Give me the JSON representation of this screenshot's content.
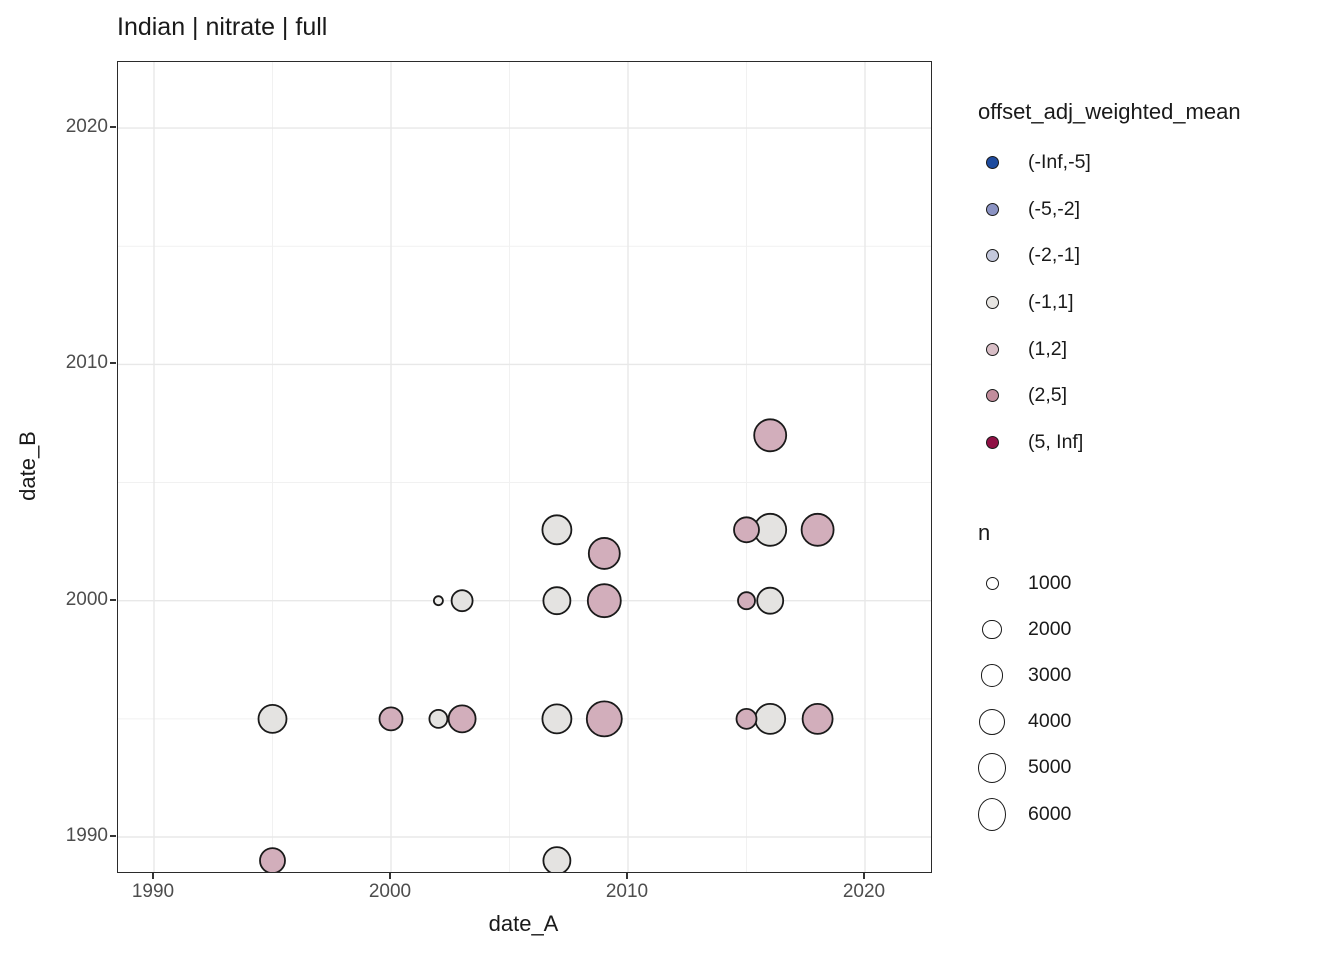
{
  "title": "Indian | nitrate | full",
  "x_axis": {
    "label": "date_A",
    "tick_labels": [
      "1990",
      "2000",
      "2010",
      "2020"
    ]
  },
  "y_axis": {
    "label": "date_B",
    "tick_labels": [
      "1990",
      "2000",
      "2010",
      "2020"
    ]
  },
  "legend_color": {
    "title": "offset_adj_weighted_mean",
    "items": [
      {
        "label": "(-Inf,-5]",
        "color": "#1e4b9e"
      },
      {
        "label": "(-5,-2]",
        "color": "#8b93c3"
      },
      {
        "label": "(-2,-1]",
        "color": "#c4c8dc"
      },
      {
        "label": "(-1,1]",
        "color": "#e7e5e2"
      },
      {
        "label": "(1,2]",
        "color": "#d8bec6"
      },
      {
        "label": "(2,5]",
        "color": "#c28d9c"
      },
      {
        "label": "(5, Inf]",
        "color": "#8f1044"
      }
    ]
  },
  "legend_size": {
    "title": "n",
    "items": [
      {
        "label": "1000",
        "d": 13
      },
      {
        "label": "2000",
        "d": 19.5
      },
      {
        "label": "3000",
        "d": 22.5
      },
      {
        "label": "4000",
        "d": 26
      },
      {
        "label": "5000",
        "d": 29.5
      },
      {
        "label": "6000",
        "d": 33
      }
    ]
  },
  "chart_data": {
    "type": "scatter",
    "title": "Indian | nitrate | full",
    "xlabel": "date_A",
    "ylabel": "date_B",
    "x_domain": [
      1988.5,
      2022.5
    ],
    "y_domain": [
      1988.5,
      2022.5
    ],
    "x_ticks": [
      1990,
      2000,
      2010,
      2020
    ],
    "y_ticks": [
      1990,
      2000,
      2010,
      2020
    ],
    "minor_ticks": [
      1995,
      2005,
      2015
    ],
    "grid": true,
    "legend_position": "right",
    "color_field": "offset_adj_weighted_mean",
    "size_field": "n",
    "panel_background": "#ffffff",
    "grid_major_color": "#e8e8e8",
    "grid_minor_color": "#f1f1f1",
    "point_stroke": "#1a1a1a",
    "points": [
      {
        "date_A": 1995,
        "date_B": 1989,
        "bin": "(1,2]",
        "n": 3500,
        "d": 25,
        "fill": "#d2aebb"
      },
      {
        "date_A": 2007,
        "date_B": 1989,
        "bin": "(-1,1]",
        "n": 4000,
        "d": 27,
        "fill": "#e4e3e1"
      },
      {
        "date_A": 1995,
        "date_B": 1995,
        "bin": "(-1,1]",
        "n": 4400,
        "d": 28,
        "fill": "#e4e3e1"
      },
      {
        "date_A": 2000,
        "date_B": 1995,
        "bin": "(1,2]",
        "n": 3000,
        "d": 23,
        "fill": "#d2aebb"
      },
      {
        "date_A": 2002,
        "date_B": 1995,
        "bin": "(-1,1]",
        "n": 1900,
        "d": 18,
        "fill": "#e4e3e1"
      },
      {
        "date_A": 2003,
        "date_B": 1995,
        "bin": "(1,2]",
        "n": 4000,
        "d": 27,
        "fill": "#d2aebb"
      },
      {
        "date_A": 2007,
        "date_B": 1995,
        "bin": "(-1,1]",
        "n": 4700,
        "d": 29,
        "fill": "#e4e3e1"
      },
      {
        "date_A": 2009,
        "date_B": 1995,
        "bin": "(1,2]",
        "n": 6700,
        "d": 35,
        "fill": "#d2aebb"
      },
      {
        "date_A": 2015,
        "date_B": 1995,
        "bin": "(1,2]",
        "n": 2300,
        "d": 20,
        "fill": "#d2aebb"
      },
      {
        "date_A": 2016,
        "date_B": 1995,
        "bin": "(-1,1]",
        "n": 5000,
        "d": 30,
        "fill": "#e4e3e1"
      },
      {
        "date_A": 2018,
        "date_B": 1995,
        "bin": "(1,2]",
        "n": 5000,
        "d": 30,
        "fill": "#d2aebb"
      },
      {
        "date_A": 2002,
        "date_B": 2000,
        "bin": "(-1,1]",
        "n": 500,
        "d": 9,
        "fill": "#eeedeb"
      },
      {
        "date_A": 2003,
        "date_B": 2000,
        "bin": "(-1,1]",
        "n": 2500,
        "d": 21,
        "fill": "#e4e3e1"
      },
      {
        "date_A": 2007,
        "date_B": 2000,
        "bin": "(-1,1]",
        "n": 4000,
        "d": 27,
        "fill": "#e4e3e1"
      },
      {
        "date_A": 2009,
        "date_B": 2000,
        "bin": "(1,2]",
        "n": 6000,
        "d": 33,
        "fill": "#d2aebb"
      },
      {
        "date_A": 2015,
        "date_B": 2000,
        "bin": "(1,2]",
        "n": 1700,
        "d": 17,
        "fill": "#d2aebb"
      },
      {
        "date_A": 2016,
        "date_B": 2000,
        "bin": "(-1,1]",
        "n": 3800,
        "d": 26,
        "fill": "#e4e3e1"
      },
      {
        "date_A": 2009,
        "date_B": 2002,
        "bin": "(1,2]",
        "n": 5300,
        "d": 31,
        "fill": "#d2aebb"
      },
      {
        "date_A": 2007,
        "date_B": 2003,
        "bin": "(-1,1]",
        "n": 4700,
        "d": 29,
        "fill": "#e4e3e1"
      },
      {
        "date_A": 2015,
        "date_B": 2003,
        "bin": "(1,2]",
        "n": 3500,
        "d": 25,
        "fill": "#d2aebb"
      },
      {
        "date_A": 2016,
        "date_B": 2003,
        "bin": "(-1,1]",
        "n": 5700,
        "d": 32,
        "fill": "#e4e3e1"
      },
      {
        "date_A": 2018,
        "date_B": 2003,
        "bin": "(1,2]",
        "n": 5700,
        "d": 32,
        "fill": "#d2aebb"
      },
      {
        "date_A": 2016,
        "date_B": 2007,
        "bin": "(1,2]",
        "n": 5700,
        "d": 32,
        "fill": "#d2aebb"
      }
    ]
  }
}
